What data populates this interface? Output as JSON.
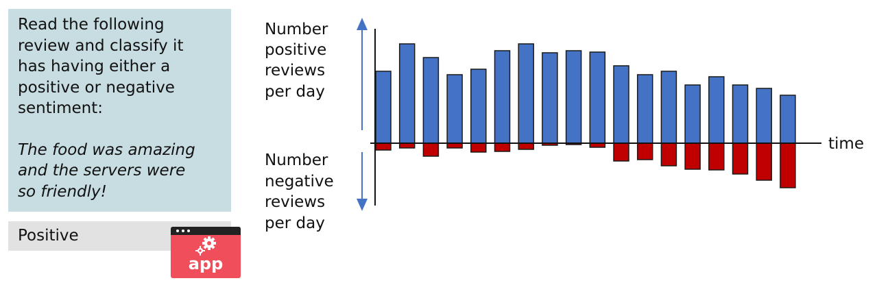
{
  "prompt": {
    "instruction": "Read the following review and classify it has having either a positive or negative sentiment:",
    "instruction_lines": [
      "Read the following",
      "review and classify it",
      "has having either a",
      "positive or negative",
      "sentiment:"
    ],
    "review_lines": [
      "The food was amazing",
      "and the servers were",
      "so friendly!"
    ]
  },
  "output": {
    "label": "Positive"
  },
  "app_icon": {
    "label": "app",
    "icon": "gear-icon",
    "color": "#f04e5b"
  },
  "chart_data": {
    "type": "bar",
    "categories": [
      "",
      "",
      "",
      "",
      "",
      "",
      "",
      "",
      "",
      "",
      "",
      "",
      "",
      "",
      "",
      "",
      "",
      ""
    ],
    "series": [
      {
        "values": [
          105,
          145,
          125,
          100,
          108,
          135,
          145,
          132,
          135,
          133,
          113,
          100,
          105,
          85,
          97,
          85,
          80,
          70
        ],
        "color": "#4472c4"
      },
      {
        "values": [
          -10,
          -7,
          -19,
          -7,
          -13,
          -12,
          -9,
          -3,
          -2,
          -6,
          -26,
          -24,
          -33,
          -38,
          -39,
          -45,
          -54,
          -65
        ],
        "color": "#c00000"
      }
    ],
    "xlabel": "time",
    "ylabel_positive": [
      "Number",
      "positive",
      "reviews",
      "per day"
    ],
    "ylabel_negative": [
      "Number",
      "negative",
      "reviews",
      "per day"
    ],
    "grid": false
  }
}
